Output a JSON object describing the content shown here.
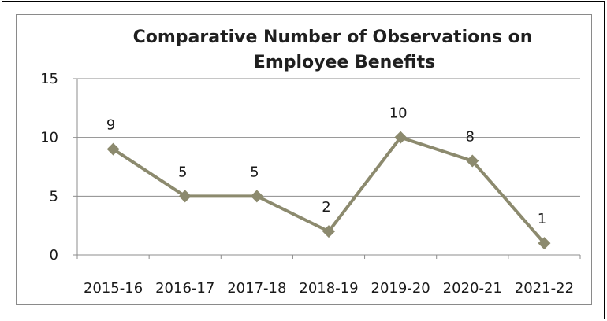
{
  "chart_data": {
    "type": "line",
    "title_lines": [
      "Comparative Number of Observations on",
      "Employee Benefits"
    ],
    "categories": [
      "2015-16",
      "2016-17",
      "2017-18",
      "2018-19",
      "2019-20",
      "2020-21",
      "2021-22"
    ],
    "values": [
      9,
      5,
      5,
      2,
      10,
      8,
      1
    ],
    "data_labels": [
      "9",
      "5",
      "5",
      "2",
      "10",
      "8",
      "1"
    ],
    "y_ticks": [
      0,
      5,
      10,
      15
    ],
    "y_tick_labels": [
      "0",
      "5",
      "10",
      "15"
    ],
    "ylim": [
      0,
      15
    ],
    "grid": true,
    "legend": "none",
    "marker": "diamond",
    "colors": {
      "series": "#8c8a6e",
      "grid": "#8c8c8c",
      "axis": "#8c8c8c",
      "frame": "#8a8a8a"
    }
  }
}
